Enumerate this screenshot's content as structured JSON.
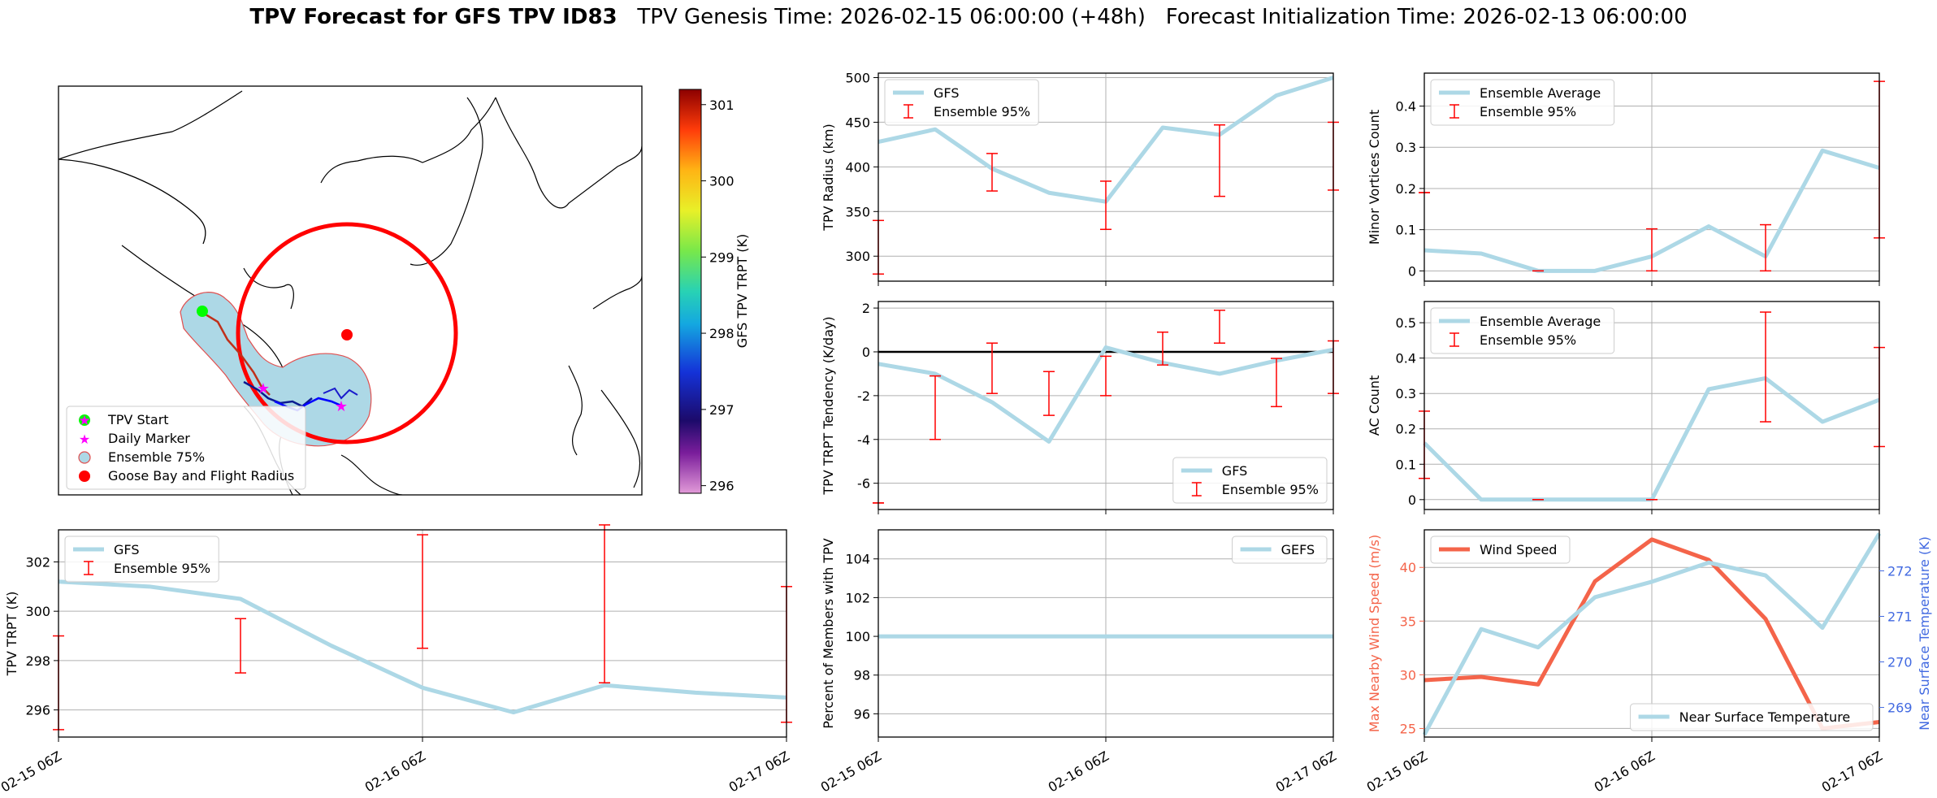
{
  "header": {
    "title_bold": "TPV Forecast for GFS TPV ID83",
    "genesis": "TPV Genesis Time: 2026-02-15 06:00:00 (+48h)",
    "init": "Forecast Initialization Time: 2026-02-13 06:00:00"
  },
  "colors": {
    "gfs": "#add8e6",
    "ens": "#ff0000",
    "wind": "#f4644a",
    "temp_axis": "#4169e1",
    "start": "#00ff00",
    "marker": "#ff00ff"
  },
  "map": {
    "legend": [
      "TPV Start",
      "Daily Marker",
      "Ensemble 75%",
      "Goose Bay and Flight Radius"
    ],
    "colorbar": {
      "label": "GFS TPV TRPT (K)",
      "ticks": [
        296,
        297,
        298,
        299,
        300,
        301
      ],
      "range": [
        295.9,
        301.2
      ]
    }
  },
  "chart_data": [
    {
      "id": "radius",
      "type": "line",
      "ylabel": "TPV Radius (km)",
      "ylim": [
        272,
        505
      ],
      "yticks": [
        300,
        350,
        400,
        450,
        500
      ],
      "x": [
        0,
        6,
        12,
        18,
        24,
        30,
        36,
        42,
        48
      ],
      "series": [
        {
          "name": "GFS",
          "values": [
            428,
            442,
            398,
            371,
            361,
            444,
            436,
            480,
            500
          ]
        }
      ],
      "ens": {
        "name": "Ensemble 95%",
        "x": [
          0,
          12,
          24,
          36,
          48
        ],
        "low": [
          280,
          373,
          330,
          367,
          374
        ],
        "high": [
          340,
          415,
          384,
          447,
          450
        ]
      },
      "legend": "upper-left"
    },
    {
      "id": "minor",
      "type": "line",
      "ylabel": "Minor Vortices Count",
      "ylim": [
        -0.025,
        0.48
      ],
      "yticks": [
        0.0,
        0.1,
        0.2,
        0.3,
        0.4
      ],
      "x": [
        0,
        6,
        12,
        18,
        24,
        30,
        36,
        42,
        48
      ],
      "series": [
        {
          "name": "Ensemble Average",
          "values": [
            0.05,
            0.042,
            0.0,
            0.0,
            0.035,
            0.108,
            0.035,
            0.292,
            0.25
          ]
        }
      ],
      "ens": {
        "name": "Ensemble 95%",
        "x": [
          0,
          12,
          24,
          36,
          48
        ],
        "low": [
          0.19,
          0.0,
          0.0,
          0.0,
          0.08
        ],
        "high": [
          0.19,
          0.0,
          0.102,
          0.112,
          0.46
        ]
      },
      "legend": "upper-left"
    },
    {
      "id": "tendency",
      "type": "line",
      "ylabel": "TPV TRPT Tendency (K/day)",
      "ylim": [
        -7.2,
        2.3
      ],
      "yticks": [
        -6,
        -4,
        -2,
        0,
        2
      ],
      "x": [
        0,
        6,
        12,
        18,
        24,
        30,
        36,
        42,
        48
      ],
      "series": [
        {
          "name": "GFS",
          "values": [
            -0.55,
            -1.0,
            -2.3,
            -4.1,
            0.2,
            -0.5,
            -1.0,
            -0.4,
            0.1
          ]
        }
      ],
      "ens": {
        "name": "Ensemble 95%",
        "x": [
          0,
          6,
          12,
          18,
          24,
          30,
          36,
          42,
          48
        ],
        "low": [
          -6.9,
          -4.0,
          -1.9,
          -2.9,
          -2.0,
          -0.6,
          0.4,
          -2.5,
          -1.9
        ],
        "high": [
          -6.9,
          -1.1,
          0.4,
          -0.9,
          -0.2,
          0.9,
          1.9,
          -0.3,
          0.5
        ]
      },
      "zero_line": true,
      "legend": "lower-right"
    },
    {
      "id": "ac",
      "type": "line",
      "ylabel": "AC Count",
      "ylim": [
        -0.028,
        0.56
      ],
      "yticks": [
        0.0,
        0.1,
        0.2,
        0.3,
        0.4,
        0.5
      ],
      "x": [
        0,
        6,
        12,
        18,
        24,
        30,
        36,
        42,
        48
      ],
      "series": [
        {
          "name": "Ensemble Average",
          "values": [
            0.16,
            0.0,
            0.0,
            0.0,
            0.0,
            0.312,
            0.343,
            0.22,
            0.282
          ]
        }
      ],
      "ens": {
        "name": "Ensemble 95%",
        "x": [
          0,
          12,
          24,
          36,
          48
        ],
        "low": [
          0.06,
          0.0,
          0.0,
          0.22,
          0.15
        ],
        "high": [
          0.25,
          0.0,
          0.0,
          0.53,
          0.43
        ]
      },
      "legend": "upper-left"
    },
    {
      "id": "trpt",
      "type": "line",
      "ylabel": "TPV TRPT (K)",
      "ylim": [
        294.9,
        303.3
      ],
      "yticks": [
        296,
        298,
        300,
        302
      ],
      "xticks": [
        "02-15 06Z",
        "02-16 06Z",
        "02-17 06Z"
      ],
      "x": [
        0,
        6,
        12,
        18,
        24,
        30,
        36,
        42,
        48
      ],
      "series": [
        {
          "name": "GFS",
          "values": [
            301.2,
            301.0,
            300.5,
            298.6,
            296.9,
            295.9,
            297.0,
            296.7,
            296.5
          ]
        }
      ],
      "ens": {
        "name": "Ensemble 95%",
        "x": [
          0,
          12,
          24,
          36,
          48
        ],
        "low": [
          295.2,
          297.5,
          298.5,
          297.1,
          295.5
        ],
        "high": [
          299.0,
          299.7,
          303.1,
          303.5,
          301.0
        ]
      },
      "legend": "upper-left"
    },
    {
      "id": "percent",
      "type": "line",
      "ylabel": "Percent of Members with TPV",
      "ylim": [
        94.8,
        105.5
      ],
      "yticks": [
        96,
        98,
        100,
        102,
        104
      ],
      "xticks": [
        "02-15 06Z",
        "02-16 06Z",
        "02-17 06Z"
      ],
      "x": [
        0,
        48
      ],
      "series": [
        {
          "name": "GEFS",
          "values": [
            100,
            100
          ]
        }
      ],
      "legend": "upper-right"
    },
    {
      "id": "wind",
      "type": "line",
      "ylabel": "Max Nearby Wind Speed (m/s)",
      "ylabel_right": "Near Surface Temperature (K)",
      "ylim": [
        24.2,
        43.5
      ],
      "yticks": [
        25,
        30,
        35,
        40
      ],
      "ylim_right": [
        268.35,
        272.9
      ],
      "yticks_right": [
        269,
        270,
        271,
        272
      ],
      "xticks": [
        "02-15 06Z",
        "02-16 06Z",
        "02-17 06Z"
      ],
      "x": [
        0,
        6,
        12,
        18,
        24,
        30,
        36,
        42,
        48
      ],
      "series": [
        {
          "name": "Wind Speed",
          "axis": "left",
          "values": [
            29.5,
            29.8,
            29.1,
            38.7,
            42.6,
            40.7,
            35.2,
            25.0,
            25.6
          ]
        },
        {
          "name": "Near Surface Temperature",
          "axis": "right",
          "values": [
            268.4,
            270.72,
            270.32,
            271.42,
            271.76,
            272.18,
            271.9,
            270.75,
            272.82
          ]
        }
      ]
    }
  ]
}
